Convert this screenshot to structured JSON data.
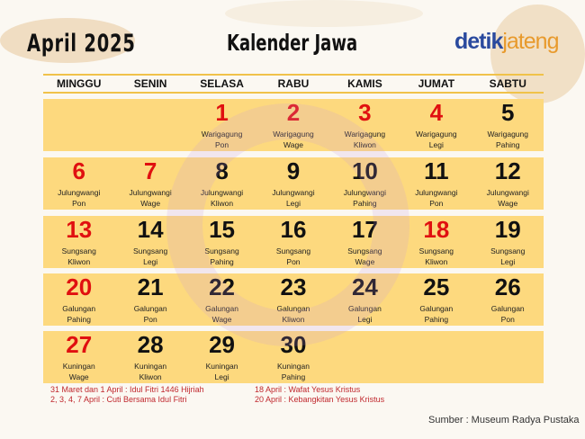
{
  "header": {
    "month": "April 2025",
    "title": "Kalender Jawa",
    "logo": {
      "part1": "detik",
      "part2": "jateng"
    }
  },
  "colors": {
    "accent": "#fdd97e",
    "holiday": "#e01010",
    "note": "#c0282e"
  },
  "weekdays": [
    "MINGGU",
    "SENIN",
    "SELASA",
    "RABU",
    "KAMIS",
    "JUMAT",
    "SABTU"
  ],
  "weeks": [
    [
      null,
      null,
      {
        "day": "1",
        "wuku": "Warigagung",
        "pasaran": "Pon",
        "red": true
      },
      {
        "day": "2",
        "wuku": "Warigagung",
        "pasaran": "Wage",
        "red": true
      },
      {
        "day": "3",
        "wuku": "Warigagung",
        "pasaran": "Kliwon",
        "red": true
      },
      {
        "day": "4",
        "wuku": "Warigagung",
        "pasaran": "Legi",
        "red": true
      },
      {
        "day": "5",
        "wuku": "Warigagung",
        "pasaran": "Pahing"
      }
    ],
    [
      {
        "day": "6",
        "wuku": "Julungwangi",
        "pasaran": "Pon",
        "red": true
      },
      {
        "day": "7",
        "wuku": "Julungwangi",
        "pasaran": "Wage",
        "red": true
      },
      {
        "day": "8",
        "wuku": "Julungwangi",
        "pasaran": "Kliwon"
      },
      {
        "day": "9",
        "wuku": "Julungwangi",
        "pasaran": "Legi"
      },
      {
        "day": "10",
        "wuku": "Julungwangi",
        "pasaran": "Pahing"
      },
      {
        "day": "11",
        "wuku": "Julungwangi",
        "pasaran": "Pon"
      },
      {
        "day": "12",
        "wuku": "Julungwangi",
        "pasaran": "Wage"
      }
    ],
    [
      {
        "day": "13",
        "wuku": "Sungsang",
        "pasaran": "Kliwon",
        "red": true
      },
      {
        "day": "14",
        "wuku": "Sungsang",
        "pasaran": "Legi"
      },
      {
        "day": "15",
        "wuku": "Sungsang",
        "pasaran": "Pahing"
      },
      {
        "day": "16",
        "wuku": "Sungsang",
        "pasaran": "Pon"
      },
      {
        "day": "17",
        "wuku": "Sungsang",
        "pasaran": "Wage"
      },
      {
        "day": "18",
        "wuku": "Sungsang",
        "pasaran": "Kliwon",
        "red": true
      },
      {
        "day": "19",
        "wuku": "Sungsang",
        "pasaran": "Legi"
      }
    ],
    [
      {
        "day": "20",
        "wuku": "Galungan",
        "pasaran": "Pahing",
        "red": true
      },
      {
        "day": "21",
        "wuku": "Galungan",
        "pasaran": "Pon"
      },
      {
        "day": "22",
        "wuku": "Galungan",
        "pasaran": "Wage"
      },
      {
        "day": "23",
        "wuku": "Galungan",
        "pasaran": "Kliwon"
      },
      {
        "day": "24",
        "wuku": "Galungan",
        "pasaran": "Legi"
      },
      {
        "day": "25",
        "wuku": "Galungan",
        "pasaran": "Pahing"
      },
      {
        "day": "26",
        "wuku": "Galungan",
        "pasaran": "Pon"
      }
    ],
    [
      {
        "day": "27",
        "wuku": "Kuningan",
        "pasaran": "Wage",
        "red": true
      },
      {
        "day": "28",
        "wuku": "Kuningan",
        "pasaran": "Kliwon"
      },
      {
        "day": "29",
        "wuku": "Kuningan",
        "pasaran": "Legi"
      },
      {
        "day": "30",
        "wuku": "Kuningan",
        "pasaran": "Pahing"
      },
      null,
      null,
      null
    ]
  ],
  "notes_left": [
    "31 Maret dan 1 April : Idul Fitri 1446 Hijriah",
    "2, 3, 4, 7 April : Cuti Bersama Idul Fitri"
  ],
  "notes_right": [
    "18 April : Wafat Yesus Kristus",
    "20 April : Kebangkitan Yesus Kristus"
  ],
  "source": "Sumber : Museum Radya Pustaka"
}
